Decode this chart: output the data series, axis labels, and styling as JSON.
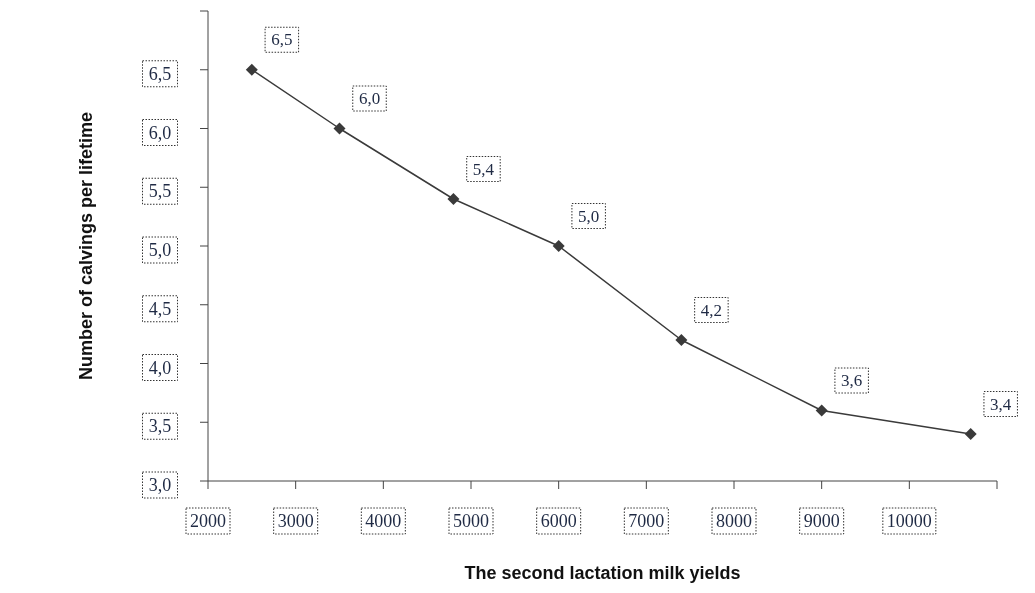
{
  "chart_data": {
    "type": "line",
    "xlabel": "The second lactation milk yields",
    "ylabel": "Number of calvings per lifetime",
    "x": [
      2500,
      3500,
      4800,
      6000,
      7400,
      9000,
      10700
    ],
    "values": [
      6.5,
      6.0,
      5.4,
      5.0,
      4.2,
      3.6,
      3.4
    ],
    "value_labels": [
      "6,5",
      "6,0",
      "5,4",
      "5,0",
      "4,2",
      "3,6",
      "3,4"
    ],
    "color": "#3a3a3a",
    "marker": "diamond",
    "line_style": "solid",
    "xlim": [
      2000,
      11000
    ],
    "xticks": [
      2000,
      3000,
      4000,
      5000,
      6000,
      7000,
      8000,
      9000,
      10000,
      {
        "value": 11000,
        "label": null
      }
    ],
    "ylim": [
      3,
      7
    ],
    "yticks": [
      {
        "value": 3,
        "label": "3,0"
      },
      {
        "value": 3.5,
        "label": "3,5"
      },
      {
        "value": 4,
        "label": "4,0"
      },
      {
        "value": 4.5,
        "label": "4,5"
      },
      {
        "value": 5,
        "label": "5,0"
      },
      {
        "value": 5.5,
        "label": "5,5"
      },
      {
        "value": 6,
        "label": "6,0"
      },
      {
        "value": 6.5,
        "label": "6,5"
      },
      {
        "value": 7,
        "label": null
      }
    ]
  }
}
